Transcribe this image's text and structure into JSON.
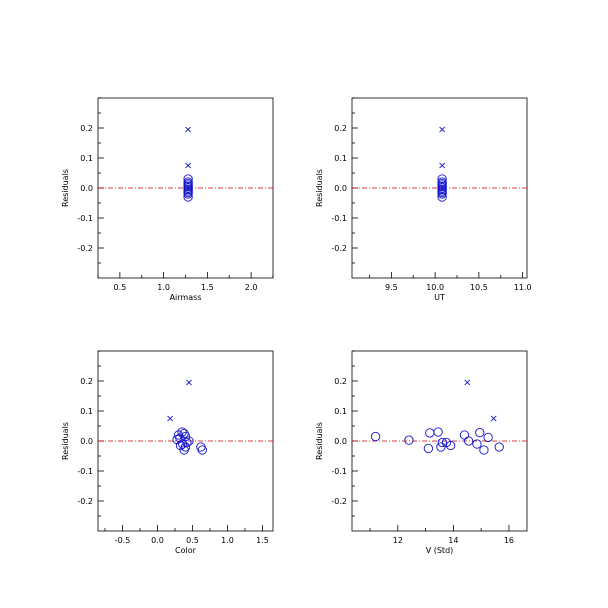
{
  "colors": {
    "points": "#1414cc",
    "zero_line": "#cc0000",
    "axes": "#000000"
  },
  "chart_data": [
    {
      "type": "scatter",
      "xlabel": "Airmass",
      "ylabel": "Residuals",
      "xlim": [
        0.25,
        2.25
      ],
      "ylim": [
        -0.3,
        0.3
      ],
      "xticks": [
        0.5,
        1.0,
        1.5,
        2.0
      ],
      "xtick_labels": [
        "0.5",
        "1.0",
        "1.5",
        "2.0"
      ],
      "yticks": [
        -0.2,
        -0.1,
        0.0,
        0.1,
        0.2
      ],
      "ytick_labels": [
        "-0.2",
        "-0.1",
        "0.0",
        "0.1",
        "0.2"
      ],
      "zero_line": 0.0,
      "series": [
        {
          "marker": "circle",
          "points": [
            [
              1.28,
              0.03
            ],
            [
              1.28,
              0.02
            ],
            [
              1.28,
              0.015
            ],
            [
              1.28,
              0.01
            ],
            [
              1.28,
              0.005
            ],
            [
              1.28,
              0.0
            ],
            [
              1.28,
              -0.005
            ],
            [
              1.28,
              -0.01
            ],
            [
              1.28,
              -0.015
            ],
            [
              1.28,
              -0.02
            ],
            [
              1.28,
              -0.03
            ]
          ]
        },
        {
          "marker": "x",
          "points": [
            [
              1.28,
              0.195
            ],
            [
              1.28,
              0.075
            ]
          ]
        }
      ]
    },
    {
      "type": "scatter",
      "xlabel": "UT",
      "ylabel": "Residuals",
      "xlim": [
        9.05,
        11.05
      ],
      "ylim": [
        -0.3,
        0.3
      ],
      "xticks": [
        9.5,
        10.0,
        10.5,
        11.0
      ],
      "xtick_labels": [
        "9.5",
        "10.0",
        "10.5",
        "11.0"
      ],
      "yticks": [
        -0.2,
        -0.1,
        0.0,
        0.1,
        0.2
      ],
      "ytick_labels": [
        "-0.2",
        "-0.1",
        "0.0",
        "0.1",
        "0.2"
      ],
      "zero_line": 0.0,
      "series": [
        {
          "marker": "circle",
          "points": [
            [
              10.08,
              0.03
            ],
            [
              10.08,
              0.02
            ],
            [
              10.08,
              0.015
            ],
            [
              10.08,
              0.01
            ],
            [
              10.08,
              0.005
            ],
            [
              10.08,
              0.0
            ],
            [
              10.08,
              -0.005
            ],
            [
              10.08,
              -0.01
            ],
            [
              10.08,
              -0.015
            ],
            [
              10.08,
              -0.02
            ],
            [
              10.08,
              -0.03
            ]
          ]
        },
        {
          "marker": "x",
          "points": [
            [
              10.08,
              0.195
            ],
            [
              10.08,
              0.075
            ]
          ]
        }
      ]
    },
    {
      "type": "scatter",
      "xlabel": "Color",
      "ylabel": "Residuals",
      "xlim": [
        -0.85,
        1.65
      ],
      "ylim": [
        -0.3,
        0.3
      ],
      "xticks": [
        -0.5,
        0.0,
        0.5,
        1.0,
        1.5
      ],
      "xtick_labels": [
        "-0.5",
        "0.0",
        "0.5",
        "1.0",
        "1.5"
      ],
      "yticks": [
        -0.2,
        -0.1,
        0.0,
        0.1,
        0.2
      ],
      "ytick_labels": [
        "-0.2",
        "-0.1",
        "0.0",
        "0.1",
        "0.2"
      ],
      "zero_line": 0.0,
      "series": [
        {
          "marker": "circle",
          "points": [
            [
              0.3,
              0.02
            ],
            [
              0.32,
              0.01
            ],
            [
              0.35,
              0.03
            ],
            [
              0.38,
              0.025
            ],
            [
              0.4,
              0.015
            ],
            [
              0.28,
              0.005
            ],
            [
              0.42,
              -0.005
            ],
            [
              0.36,
              -0.01
            ],
            [
              0.4,
              -0.02
            ],
            [
              0.33,
              -0.015
            ],
            [
              0.45,
              0.0
            ],
            [
              0.62,
              -0.02
            ],
            [
              0.64,
              -0.03
            ],
            [
              0.38,
              -0.03
            ]
          ]
        },
        {
          "marker": "x",
          "points": [
            [
              0.45,
              0.195
            ],
            [
              0.18,
              0.075
            ]
          ]
        }
      ]
    },
    {
      "type": "scatter",
      "xlabel": "V (Std)",
      "ylabel": "Residuals",
      "xlim": [
        10.35,
        16.65
      ],
      "ylim": [
        -0.3,
        0.3
      ],
      "xticks": [
        12,
        14,
        16
      ],
      "xtick_labels": [
        "12",
        "14",
        "16"
      ],
      "yticks": [
        -0.2,
        -0.1,
        0.0,
        0.1,
        0.2
      ],
      "ytick_labels": [
        "-0.2",
        "-0.1",
        "0.0",
        "0.1",
        "0.2"
      ],
      "zero_line": 0.0,
      "series": [
        {
          "marker": "circle",
          "points": [
            [
              11.2,
              0.015
            ],
            [
              12.4,
              0.003
            ],
            [
              13.1,
              -0.025
            ],
            [
              13.15,
              0.027
            ],
            [
              13.45,
              0.03
            ],
            [
              13.55,
              -0.02
            ],
            [
              13.6,
              -0.005
            ],
            [
              13.75,
              -0.005
            ],
            [
              13.9,
              -0.015
            ],
            [
              14.4,
              0.02
            ],
            [
              14.55,
              0.0
            ],
            [
              14.85,
              -0.01
            ],
            [
              14.95,
              0.028
            ],
            [
              15.1,
              -0.03
            ],
            [
              15.25,
              0.012
            ],
            [
              15.65,
              -0.02
            ]
          ]
        },
        {
          "marker": "x",
          "points": [
            [
              14.5,
              0.195
            ],
            [
              15.45,
              0.075
            ]
          ]
        }
      ]
    }
  ]
}
